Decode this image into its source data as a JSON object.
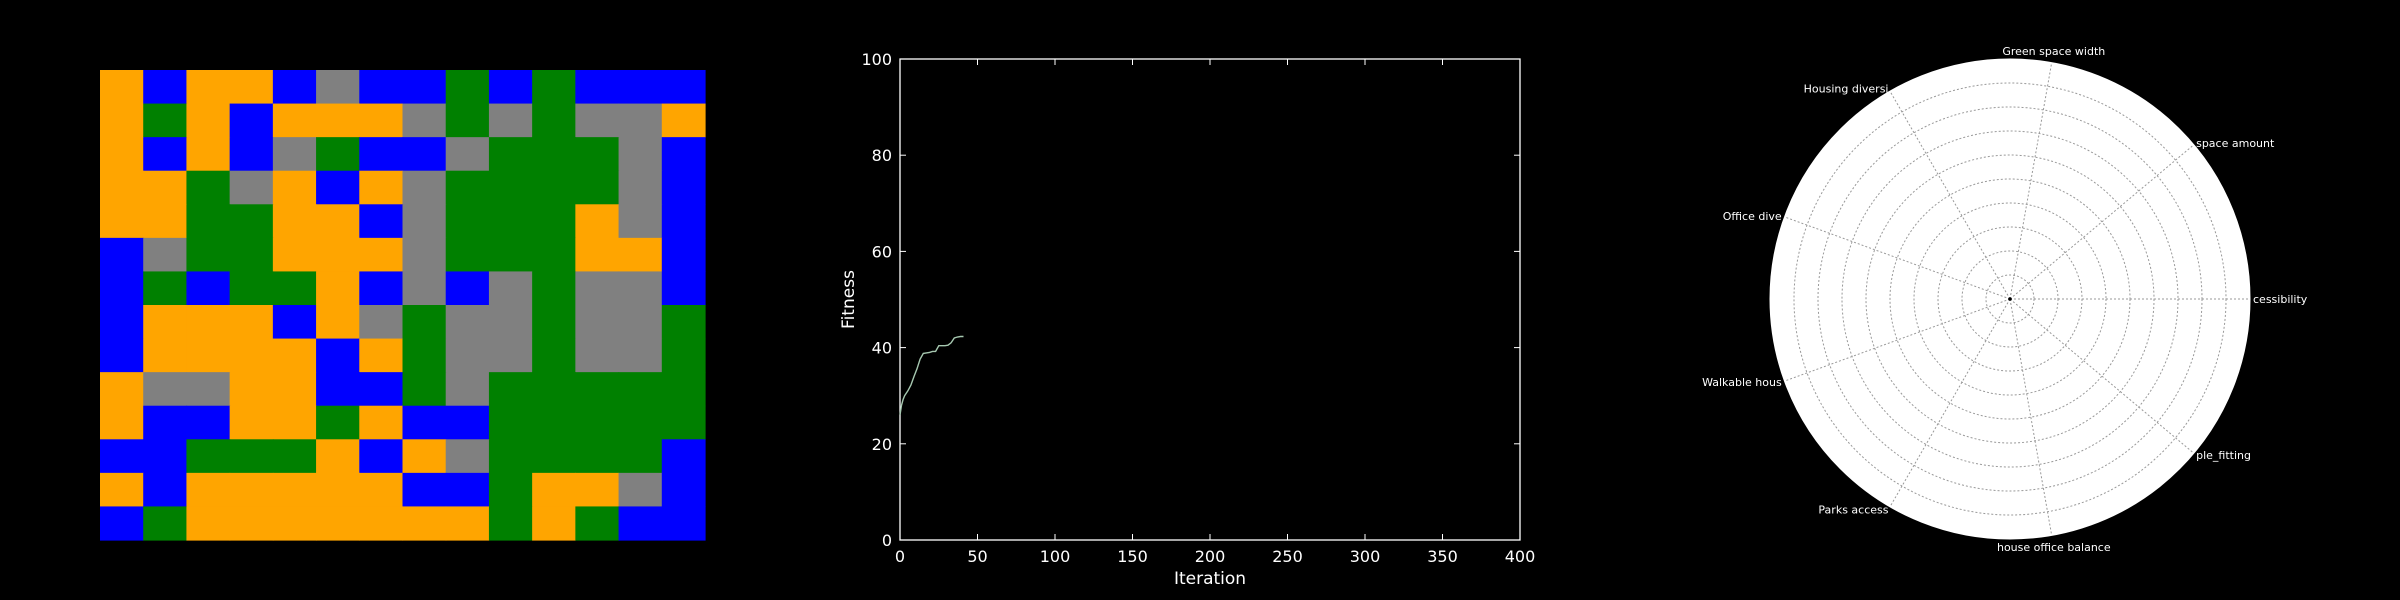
{
  "colors": {
    "background": "#000000",
    "road": "#808080",
    "housing": "#ffa500",
    "green": "#008000",
    "office": "#0000ff",
    "fitness_line": "#a6c8b0",
    "radar_fill": "#ffffff",
    "radar_grid": "#999999"
  },
  "chart_data": [
    {
      "type": "heatmap",
      "grid_size": [
        14,
        14
      ],
      "legend_keys": {
        "R": "road",
        "H": "housing",
        "G": "green",
        "O": "office"
      },
      "cells": [
        "HOHHOROOGOGOOO",
        "HGHOHHHRGRGRRH",
        "HOHORGOORGGGRO",
        "HHGRHOHRGGGGRO",
        "HHGGHHORGGGHRO",
        "ORGGHHHRGGGHHO",
        "OGOGGHORORGRRO",
        "OHHHOHRGRRGRRG",
        "OHHHHOHGRRGRRG",
        "HRRHHOOGRGGGGG",
        "HOOHHGHOOGGGGG",
        "OOGGGHOHRGGGGO",
        "HOHHHHHOOGHHRO",
        "OGHHHHHHHGHGOO"
      ]
    },
    {
      "type": "line",
      "xlabel": "Iteration",
      "ylabel": "Fitness",
      "xlim": [
        0,
        400
      ],
      "ylim": [
        0,
        100
      ],
      "xticks": [
        0,
        50,
        100,
        150,
        200,
        250,
        300,
        350,
        400
      ],
      "yticks": [
        0,
        20,
        40,
        60,
        80,
        100
      ],
      "grid": false,
      "series": [
        {
          "x": [
            0,
            1,
            2,
            3,
            5,
            7,
            9,
            11,
            13,
            15,
            17,
            19,
            21,
            23,
            25,
            27,
            29,
            31,
            33,
            35,
            37,
            39,
            41
          ],
          "y": [
            26.0,
            28.0,
            29.2,
            30.0,
            31.0,
            32.2,
            34.0,
            35.6,
            37.6,
            38.8,
            38.9,
            39.0,
            39.2,
            39.2,
            40.4,
            40.4,
            40.4,
            40.5,
            41.0,
            42.0,
            42.2,
            42.3,
            42.3
          ]
        }
      ]
    },
    {
      "type": "radar",
      "rmax": 1,
      "rings": 10,
      "axes": [
        "Accessibility",
        "Green space amount",
        "Green space width",
        "Housing diversity",
        "Office diversity",
        "Walkable housing",
        "Parks access",
        "house office balance",
        "people_fitting"
      ],
      "visible_labels": [
        "cessibility",
        "space amount",
        "Green space width",
        "Housing diversi",
        "Office dive",
        "Walkable hous",
        "Parks access",
        "house office balance",
        "ple_fitting"
      ],
      "values": [
        0,
        0,
        0,
        0,
        0,
        0,
        0,
        0,
        0
      ]
    }
  ]
}
